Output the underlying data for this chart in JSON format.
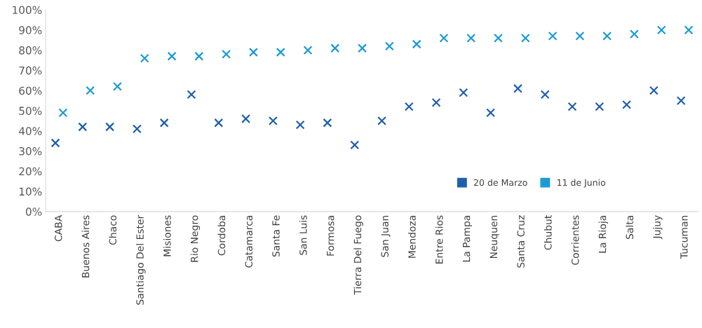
{
  "chart_data": {
    "type": "scatter",
    "categories": [
      "CABA",
      "Buenos Aires",
      "Chaco",
      "Santiago Del Ester",
      "Misiones",
      "Rio Negro",
      "Cordoba",
      "Catamarca",
      "Santa Fe",
      "San Luis",
      "Formosa",
      "Tierra Del Fuego",
      "San Juan",
      "Mendoza",
      "Entre Rios",
      "La Pampa",
      "Neuquen",
      "Santa Cruz",
      "Chubut",
      "Corrientes",
      "La Rioja",
      "Salta",
      "Jujuy",
      "Tucuman"
    ],
    "series": [
      {
        "name": "20 de Marzo",
        "color": "#1f5fad",
        "values": [
          34,
          42,
          42,
          41,
          44,
          58,
          44,
          46,
          45,
          43,
          44,
          33,
          45,
          52,
          54,
          59,
          49,
          61,
          58,
          52,
          52,
          53,
          60,
          55
        ]
      },
      {
        "name": "11 de Junio",
        "color": "#1c9ad6",
        "values": [
          49,
          60,
          62,
          76,
          77,
          77,
          78,
          79,
          79,
          80,
          81,
          81,
          82,
          83,
          86,
          86,
          86,
          86,
          87,
          87,
          87,
          88,
          90,
          90
        ]
      }
    ],
    "ylim": [
      0,
      100
    ],
    "yticks": [
      {
        "value": 0,
        "label": "0%"
      },
      {
        "value": 10,
        "label": "10%"
      },
      {
        "value": 20,
        "label": "20%"
      },
      {
        "value": 30,
        "label": "30%"
      },
      {
        "value": 40,
        "label": "40%"
      },
      {
        "value": 50,
        "label": "50%"
      },
      {
        "value": 60,
        "label": "60%"
      },
      {
        "value": 70,
        "label": "70%"
      },
      {
        "value": 80,
        "label": "80%"
      },
      {
        "value": 90,
        "label": "90%"
      },
      {
        "value": 100,
        "label": "100%"
      }
    ],
    "marker": "cross",
    "grid": false,
    "legend": "lower right"
  }
}
